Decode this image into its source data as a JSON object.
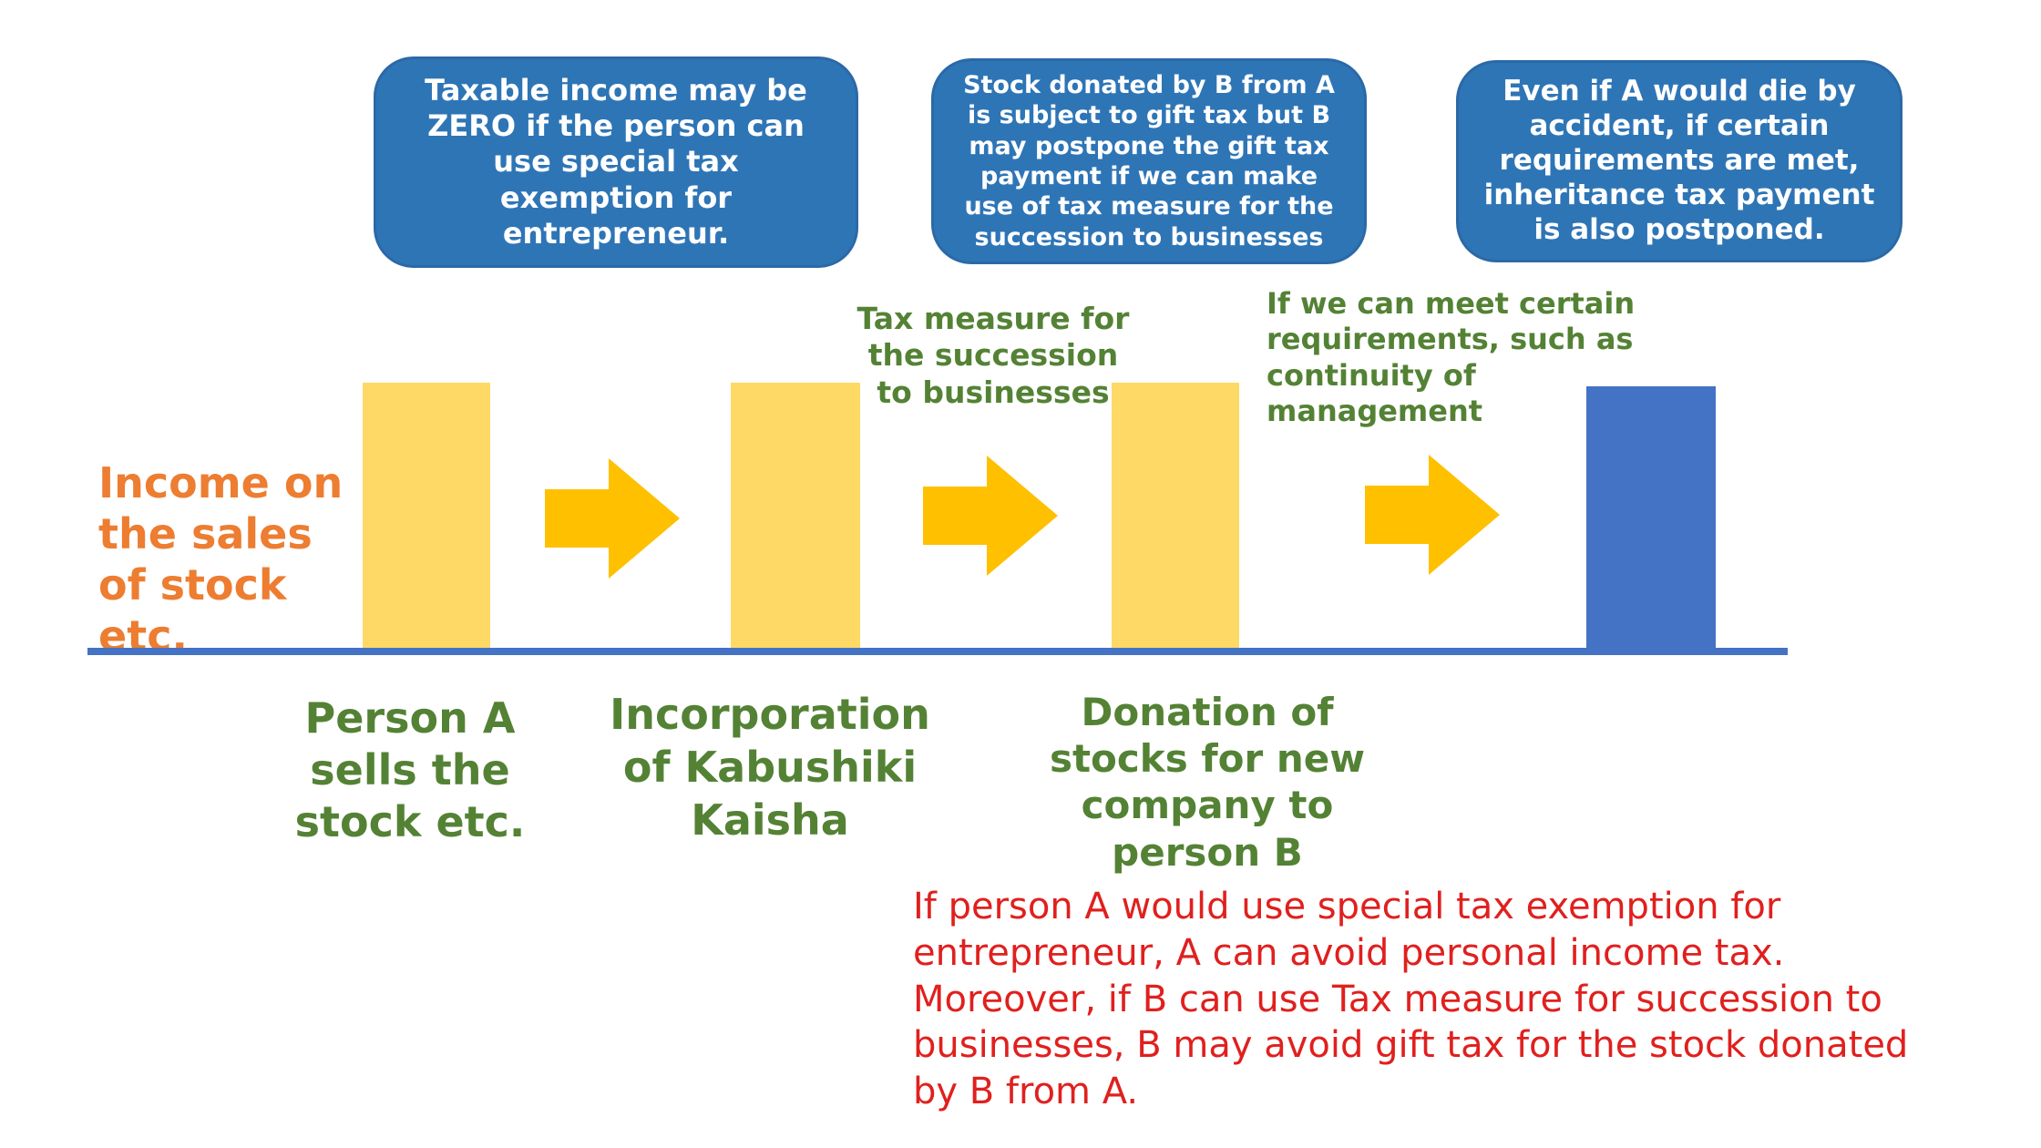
{
  "callouts": {
    "income_exemption": "Taxable income may be ZERO if the person can use special tax exemption for entrepreneur.",
    "gift_tax": "Stock donated by B from A is subject to gift tax but B may postpone the gift  tax payment if we can make use of tax measure for the succession to businesses",
    "inheritance": "Even if A would die by accident, if certain requirements are met, inheritance tax payment is also postponed."
  },
  "labels": {
    "income_on_sales": "Income on the sales of stock etc.",
    "tax_measure": "Tax measure for the succession to businesses",
    "requirements": "If we can meet certain requirements, such as continuity of management"
  },
  "steps": [
    "Person A sells the stock etc.",
    "Incorporation of Kabushiki Kaisha",
    "Donation of stocks for new company to person B"
  ],
  "summary": "If person A would use special tax exemption for entrepreneur, A can avoid personal income tax. Moreover, if B can use Tax measure for succession to businesses, B may avoid gift tax for the stock donated by B from A.",
  "colors": {
    "callout_blue": "#2e75b6",
    "bar_yellow": "#ffd966",
    "bar_blue": "#4472c4",
    "arrow_gold": "#ffc000",
    "label_orange": "#ed7d31",
    "label_green": "#548235",
    "summary_red": "#e0201e"
  }
}
